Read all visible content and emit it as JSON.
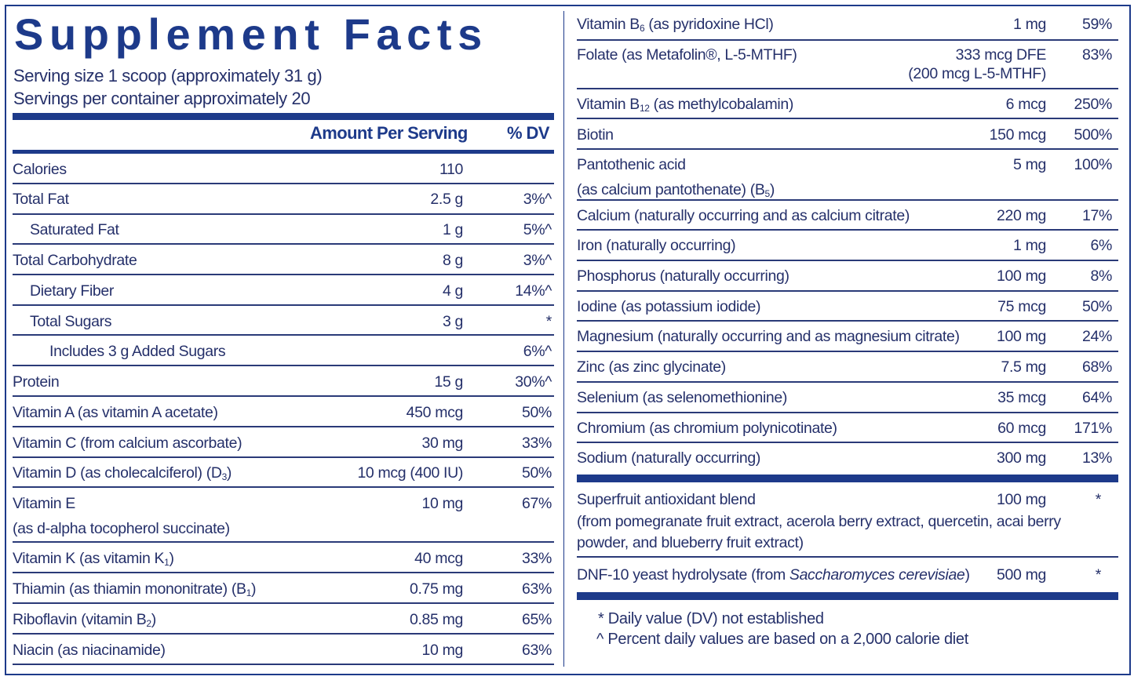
{
  "title": "Supplement Facts",
  "serving_size": "Serving size  1 scoop (approximately 31 g)",
  "servings_per_container": "Servings per container  approximately 20",
  "header": {
    "amount": "Amount Per Serving",
    "dv": "% DV"
  },
  "colors": {
    "brand": "#1d3a8a",
    "text": "#25306a"
  },
  "left_rows": [
    {
      "label": [
        {
          "t": "Calories"
        }
      ],
      "amount": "110",
      "dv": ""
    },
    {
      "label": [
        {
          "t": "Total Fat"
        }
      ],
      "amount": "2.5 g",
      "dv": "3%^"
    },
    {
      "label": [
        {
          "t": "Saturated Fat"
        }
      ],
      "amount": "1 g",
      "dv": "5%^",
      "indent": 1
    },
    {
      "label": [
        {
          "t": "Total Carbohydrate"
        }
      ],
      "amount": "8 g",
      "dv": "3%^"
    },
    {
      "label": [
        {
          "t": "Dietary Fiber"
        }
      ],
      "amount": "4 g",
      "dv": "14%^",
      "indent": 1
    },
    {
      "label": [
        {
          "t": "Total Sugars"
        }
      ],
      "amount": "3 g",
      "dv": "*",
      "indent": 1
    },
    {
      "label": [
        {
          "t": "Includes 3 g Added Sugars"
        }
      ],
      "amount": "",
      "dv": "6%^",
      "indent": 2
    },
    {
      "label": [
        {
          "t": "Protein"
        }
      ],
      "amount": "15 g",
      "dv": "30%^"
    },
    {
      "label": [
        {
          "t": "Vitamin A (as vitamin A acetate)"
        }
      ],
      "amount": "450 mcg",
      "dv": "50%"
    },
    {
      "label": [
        {
          "t": "Vitamin C (from calcium ascorbate)"
        }
      ],
      "amount": "30 mg",
      "dv": "33%"
    },
    {
      "label": [
        {
          "t": "Vitamin D (as cholecalciferol) (D"
        },
        {
          "t": "3",
          "sub": true
        },
        {
          "t": ")"
        }
      ],
      "amount": "10 mcg (400 IU)",
      "dv": "50%"
    },
    {
      "label": [
        {
          "t": "Vitamin E"
        }
      ],
      "label2": [
        {
          "t": "(as d-alpha tocopherol succinate)"
        }
      ],
      "amount": "10 mg",
      "dv": "67%"
    },
    {
      "label": [
        {
          "t": "Vitamin K (as vitamin K"
        },
        {
          "t": "1",
          "sub": true
        },
        {
          "t": ")"
        }
      ],
      "amount": "40 mcg",
      "dv": "33%"
    },
    {
      "label": [
        {
          "t": "Thiamin (as thiamin mononitrate) (B"
        },
        {
          "t": "1",
          "sub": true
        },
        {
          "t": ")"
        }
      ],
      "amount": "0.75 mg",
      "dv": "63%"
    },
    {
      "label": [
        {
          "t": "Riboflavin (vitamin B"
        },
        {
          "t": "2",
          "sub": true
        },
        {
          "t": ")"
        }
      ],
      "amount": "0.85 mg",
      "dv": "65%"
    },
    {
      "label": [
        {
          "t": "Niacin (as niacinamide)"
        }
      ],
      "amount": "10 mg",
      "dv": "63%"
    }
  ],
  "right_rows": [
    {
      "label": [
        {
          "t": "Vitamin B"
        },
        {
          "t": "6",
          "sub": true
        },
        {
          "t": " (as pyridoxine HCl)"
        }
      ],
      "amount": "1 mg",
      "dv": "59%"
    },
    {
      "label": [
        {
          "t": "Folate (as Metafolin®, L-5-MTHF)"
        }
      ],
      "amount": "333 mcg DFE",
      "amount2": "(200 mcg L-5-MTHF)",
      "dv": "83%"
    },
    {
      "label": [
        {
          "t": "Vitamin B"
        },
        {
          "t": "12",
          "sub": true
        },
        {
          "t": " (as methylcobalamin)"
        }
      ],
      "amount": "6 mcg",
      "dv": "250%"
    },
    {
      "label": [
        {
          "t": "Biotin"
        }
      ],
      "amount": "150 mcg",
      "dv": "500%"
    },
    {
      "label": [
        {
          "t": "Pantothenic acid"
        }
      ],
      "label2": [
        {
          "t": "(as calcium pantothenate) (B"
        },
        {
          "t": "5",
          "sub": true
        },
        {
          "t": ")"
        }
      ],
      "amount": "5 mg",
      "dv": "100%"
    },
    {
      "label": [
        {
          "t": "Calcium (naturally occurring and as calcium citrate)"
        }
      ],
      "amount": "220 mg",
      "dv": "17%"
    },
    {
      "label": [
        {
          "t": "Iron (naturally occurring)"
        }
      ],
      "amount": "1 mg",
      "dv": "6%"
    },
    {
      "label": [
        {
          "t": "Phosphorus (naturally occurring)"
        }
      ],
      "amount": "100 mg",
      "dv": "8%"
    },
    {
      "label": [
        {
          "t": "Iodine (as potassium iodide)"
        }
      ],
      "amount": "75 mcg",
      "dv": "50%"
    },
    {
      "label": [
        {
          "t": "Magnesium (naturally occurring and as magnesium citrate)"
        }
      ],
      "amount": "100 mg",
      "dv": "24%"
    },
    {
      "label": [
        {
          "t": "Zinc (as zinc glycinate)"
        }
      ],
      "amount": "7.5 mg",
      "dv": "68%"
    },
    {
      "label": [
        {
          "t": "Selenium (as selenomethionine)"
        }
      ],
      "amount": "35 mcg",
      "dv": "64%"
    },
    {
      "label": [
        {
          "t": "Chromium (as chromium polynicotinate)"
        }
      ],
      "amount": "60 mcg",
      "dv": "171%"
    },
    {
      "label": [
        {
          "t": "Sodium (naturally occurring)"
        }
      ],
      "amount": "300 mg",
      "dv": "13%"
    }
  ],
  "blend_rows": [
    {
      "label": [
        {
          "t": "Superfruit antioxidant blend"
        }
      ],
      "label2": [
        {
          "t": "(from pomegranate fruit extract, acerola berry extract, quercetin, acai berry"
        }
      ],
      "label3": [
        {
          "t": "powder, and blueberry fruit extract)"
        }
      ],
      "amount": "100 mg",
      "dv": "*"
    },
    {
      "label": [
        {
          "t": "DNF-10 yeast hydrolysate (from "
        },
        {
          "t": "Saccharomyces cerevisiae",
          "i": true
        },
        {
          "t": ")"
        }
      ],
      "amount": "500 mg",
      "dv": "*"
    }
  ],
  "footnotes": [
    "* Daily value (DV) not established",
    "^ Percent daily values are based on a 2,000 calorie diet"
  ]
}
